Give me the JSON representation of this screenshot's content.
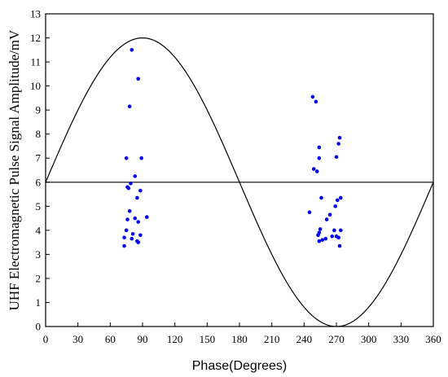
{
  "chart_data": {
    "type": "scatter",
    "title": "",
    "xlabel": "Phase(Degrees)",
    "ylabel": "UHF Electromagnetic Pulse Signal Amplitude/mV",
    "xlim": [
      0,
      360
    ],
    "ylim": [
      0,
      13
    ],
    "x_ticks": [
      0,
      30,
      60,
      90,
      120,
      150,
      180,
      210,
      240,
      270,
      300,
      330,
      360
    ],
    "y_ticks": [
      0,
      1,
      2,
      3,
      4,
      5,
      6,
      7,
      8,
      9,
      10,
      11,
      12,
      13
    ],
    "grid": false,
    "legend": "none",
    "reference_line": {
      "type": "sine",
      "baseline": 6,
      "amplitude": 6,
      "period_degrees": 360,
      "color": "#000000"
    },
    "baseline_line": {
      "y": 6,
      "color": "#000000"
    },
    "series": [
      {
        "color": "#0000ee",
        "points": [
          [
            80,
            11.5
          ],
          [
            86,
            10.3
          ],
          [
            78,
            9.15
          ],
          [
            75,
            7.0
          ],
          [
            89,
            7.0
          ],
          [
            83,
            6.25
          ],
          [
            79,
            5.95
          ],
          [
            76,
            5.8
          ],
          [
            77,
            5.75
          ],
          [
            88,
            5.65
          ],
          [
            85,
            5.35
          ],
          [
            94,
            4.55
          ],
          [
            78,
            4.8
          ],
          [
            76,
            4.45
          ],
          [
            83,
            4.5
          ],
          [
            86,
            4.35
          ],
          [
            75,
            4.0
          ],
          [
            81,
            3.85
          ],
          [
            88,
            3.8
          ],
          [
            73,
            3.7
          ],
          [
            80,
            3.65
          ],
          [
            85,
            3.55
          ],
          [
            86,
            3.5
          ],
          [
            73,
            3.35
          ],
          [
            248,
            9.55
          ],
          [
            251,
            9.35
          ],
          [
            273,
            7.85
          ],
          [
            272,
            7.6
          ],
          [
            254,
            7.45
          ],
          [
            270,
            7.05
          ],
          [
            254,
            7.0
          ],
          [
            249,
            6.55
          ],
          [
            252,
            6.45
          ],
          [
            256,
            5.35
          ],
          [
            274,
            5.35
          ],
          [
            271,
            5.25
          ],
          [
            269,
            5.0
          ],
          [
            245,
            4.75
          ],
          [
            264,
            4.65
          ],
          [
            261,
            4.45
          ],
          [
            255,
            4.05
          ],
          [
            268,
            4.0
          ],
          [
            274,
            4.0
          ],
          [
            254,
            3.9
          ],
          [
            253,
            3.8
          ],
          [
            270,
            3.75
          ],
          [
            266,
            3.75
          ],
          [
            272,
            3.7
          ],
          [
            260,
            3.65
          ],
          [
            257,
            3.6
          ],
          [
            254,
            3.55
          ],
          [
            273,
            3.35
          ]
        ]
      }
    ]
  }
}
